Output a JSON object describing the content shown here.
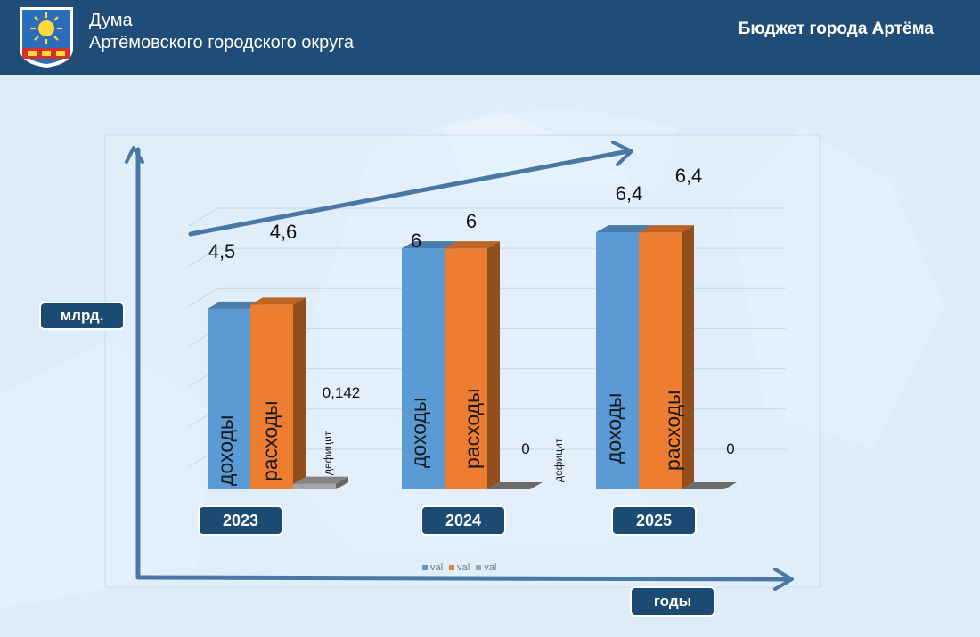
{
  "header": {
    "org_line1": "Дума",
    "org_line2": "Артёмовского городского округа",
    "title": "Бюджет города Артёма"
  },
  "icons": {
    "emblem": "city-coat-of-arms-sun-icon"
  },
  "axes": {
    "y_label": "млрд.",
    "x_label": "годы"
  },
  "colors": {
    "header_bg": "#1f4d78",
    "income": "#5b9bd5",
    "expense": "#ed7d31",
    "deficit": "#a5a5a5",
    "arrow": "#4a78a4",
    "pill": "#1b4a73"
  },
  "chart_data": {
    "type": "bar",
    "categories": [
      "2023",
      "2024",
      "2025"
    ],
    "series": [
      {
        "name": "доходы",
        "values": [
          4.5,
          6,
          6.4
        ]
      },
      {
        "name": "расходы",
        "values": [
          4.6,
          6,
          6.4
        ]
      },
      {
        "name": "дефицит",
        "values": [
          0.142,
          0,
          0
        ]
      }
    ],
    "value_labels": [
      [
        "4,5",
        "4,6",
        "0,142"
      ],
      [
        "6",
        "6",
        "0"
      ],
      [
        "6,4",
        "6,4",
        "0"
      ]
    ],
    "bar_text_labels": [
      [
        "доходы",
        "расходы",
        "дефицит"
      ],
      [
        "доходы",
        "расходы",
        "дефицит"
      ],
      [
        "доходы",
        "расходы",
        ""
      ]
    ],
    "legend": [
      "val",
      "val",
      "val"
    ],
    "ylim": [
      0,
      7
    ],
    "grid": true
  }
}
